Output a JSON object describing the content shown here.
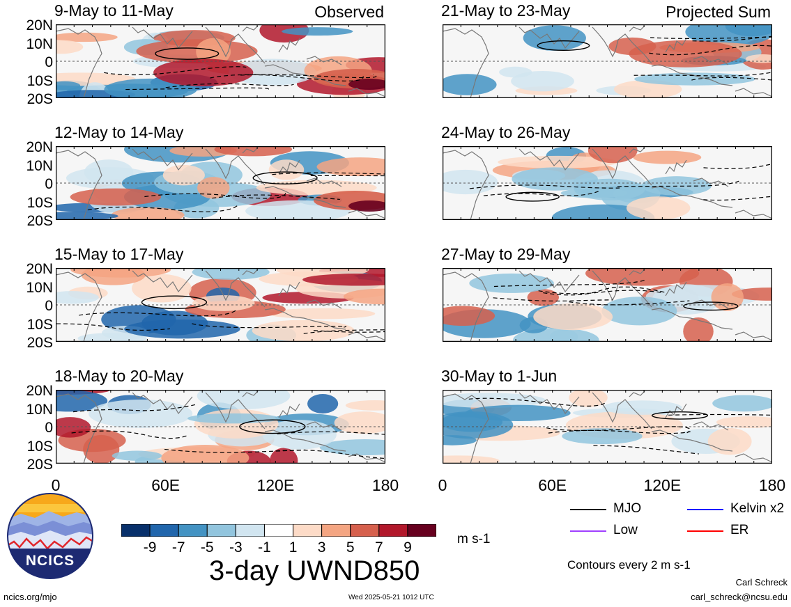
{
  "panels": [
    {
      "title": "9-May to 11-May",
      "tag": "Observed",
      "column": "left",
      "row": 0
    },
    {
      "title": "12-May to 14-May",
      "tag": "",
      "column": "left",
      "row": 1
    },
    {
      "title": "15-May to 17-May",
      "tag": "",
      "column": "left",
      "row": 2
    },
    {
      "title": "18-May to 20-May",
      "tag": "",
      "column": "left",
      "row": 3
    },
    {
      "title": "21-May to 23-May",
      "tag": "Projected Sum",
      "column": "right",
      "row": 0
    },
    {
      "title": "24-May to 26-May",
      "tag": "",
      "column": "right",
      "row": 1
    },
    {
      "title": "27-May to 29-May",
      "tag": "",
      "column": "right",
      "row": 2
    },
    {
      "title": "30-May to 1-Jun",
      "tag": "",
      "column": "right",
      "row": 3
    }
  ],
  "lat_labels": [
    "20N",
    "10N",
    "0",
    "10S",
    "20S"
  ],
  "lon_labels": [
    "0",
    "60E",
    "120E",
    "180"
  ],
  "colorbar": {
    "labels": [
      "-9",
      "-7",
      "-5",
      "-3",
      "-1",
      "1",
      "3",
      "5",
      "7",
      "9"
    ],
    "colors": [
      "#08306b",
      "#2166ac",
      "#4393c3",
      "#92c5de",
      "#d1e5f0",
      "#ffffff",
      "#fddbc7",
      "#f4a582",
      "#d6604d",
      "#b2182b",
      "#67001f"
    ],
    "units": "m s-1"
  },
  "variable_title": "3-day UWND850",
  "legend": [
    {
      "label": "MJO",
      "color": "#000000"
    },
    {
      "label": "Kelvin x2",
      "color": "#0000ff"
    },
    {
      "label": "Low",
      "color": "#a040ff"
    },
    {
      "label": "ER",
      "color": "#ff0000"
    }
  ],
  "contours_note": "Contours every 2 m s-1",
  "logo_text": "NCICS",
  "footer": {
    "url": "ncics.org/mjo",
    "timestamp": "Wed 2025-05-21 1012 UTC",
    "author": "Carl Schreck",
    "email": "carl_schreck@ncsu.edu"
  }
}
